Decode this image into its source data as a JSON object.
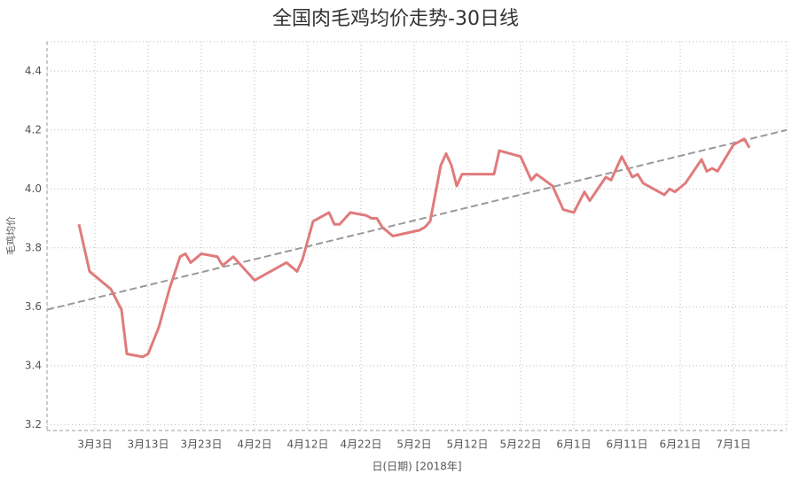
{
  "chart_data": {
    "type": "line",
    "title": "全国肉毛鸡均价走势-30日线",
    "x_label": "日(日期) [2018年]",
    "y_label": "毛鸡均价",
    "x": [
      "2018-02-28",
      "2018-03-02",
      "2018-03-06",
      "2018-03-08",
      "2018-03-09",
      "2018-03-12",
      "2018-03-13",
      "2018-03-15",
      "2018-03-17",
      "2018-03-19",
      "2018-03-20",
      "2018-03-21",
      "2018-03-23",
      "2018-03-26",
      "2018-03-27",
      "2018-03-29",
      "2018-04-02",
      "2018-04-08",
      "2018-04-10",
      "2018-04-11",
      "2018-04-13",
      "2018-04-16",
      "2018-04-17",
      "2018-04-18",
      "2018-04-20",
      "2018-04-23",
      "2018-04-24",
      "2018-04-25",
      "2018-04-26",
      "2018-04-28",
      "2018-05-03",
      "2018-05-04",
      "2018-05-05",
      "2018-05-07",
      "2018-05-08",
      "2018-05-09",
      "2018-05-10",
      "2018-05-11",
      "2018-05-16",
      "2018-05-17",
      "2018-05-18",
      "2018-05-22",
      "2018-05-23",
      "2018-05-24",
      "2018-05-25",
      "2018-05-28",
      "2018-05-30",
      "2018-06-01",
      "2018-06-03",
      "2018-06-04",
      "2018-06-07",
      "2018-06-08",
      "2018-06-10",
      "2018-06-12",
      "2018-06-13",
      "2018-06-14",
      "2018-06-18",
      "2018-06-19",
      "2018-06-20",
      "2018-06-22",
      "2018-06-25",
      "2018-06-26",
      "2018-06-27",
      "2018-06-28",
      "2018-07-01",
      "2018-07-03",
      "2018-07-04"
    ],
    "series": [
      {
        "color": "#e07b7b",
        "values": [
          3.88,
          3.72,
          3.66,
          3.59,
          3.44,
          3.43,
          3.44,
          3.53,
          3.66,
          3.77,
          3.78,
          3.75,
          3.78,
          3.77,
          3.74,
          3.77,
          3.69,
          3.75,
          3.72,
          3.76,
          3.89,
          3.92,
          3.88,
          3.88,
          3.92,
          3.91,
          3.9,
          3.9,
          3.87,
          3.84,
          3.86,
          3.87,
          3.89,
          4.08,
          4.12,
          4.08,
          4.01,
          4.05,
          4.05,
          4.05,
          4.13,
          4.11,
          4.07,
          4.03,
          4.05,
          4.01,
          3.93,
          3.92,
          3.99,
          3.96,
          4.04,
          4.03,
          4.11,
          4.04,
          4.05,
          4.02,
          3.98,
          4.0,
          3.99,
          4.02,
          4.1,
          4.06,
          4.07,
          4.06,
          4.15,
          4.17,
          4.14
        ]
      }
    ],
    "trendline": {
      "color": "#999999",
      "x": [
        "2018-02-22",
        "2018-07-11"
      ],
      "values": [
        3.59,
        4.2
      ]
    },
    "xlim": [
      "2018-02-22",
      "2018-07-11"
    ],
    "xticks": [
      {
        "value": "2018-03-03",
        "label": "3月3日"
      },
      {
        "value": "2018-03-13",
        "label": "3月13日"
      },
      {
        "value": "2018-03-23",
        "label": "3月23日"
      },
      {
        "value": "2018-04-02",
        "label": "4月2日"
      },
      {
        "value": "2018-04-12",
        "label": "4月12日"
      },
      {
        "value": "2018-04-22",
        "label": "4月22日"
      },
      {
        "value": "2018-05-02",
        "label": "5月2日"
      },
      {
        "value": "2018-05-12",
        "label": "5月12日"
      },
      {
        "value": "2018-05-22",
        "label": "5月22日"
      },
      {
        "value": "2018-06-01",
        "label": "6月1日"
      },
      {
        "value": "2018-06-11",
        "label": "6月11日"
      },
      {
        "value": "2018-06-21",
        "label": "6月21日"
      },
      {
        "value": "2018-07-01",
        "label": "7月1日"
      }
    ],
    "ylim": [
      3.18,
      4.5
    ],
    "yticks": [
      3.2,
      3.4,
      3.6,
      3.8,
      {
        "value": 4,
        "label": "4.0"
      },
      4.2,
      4.4
    ],
    "grid": true
  }
}
